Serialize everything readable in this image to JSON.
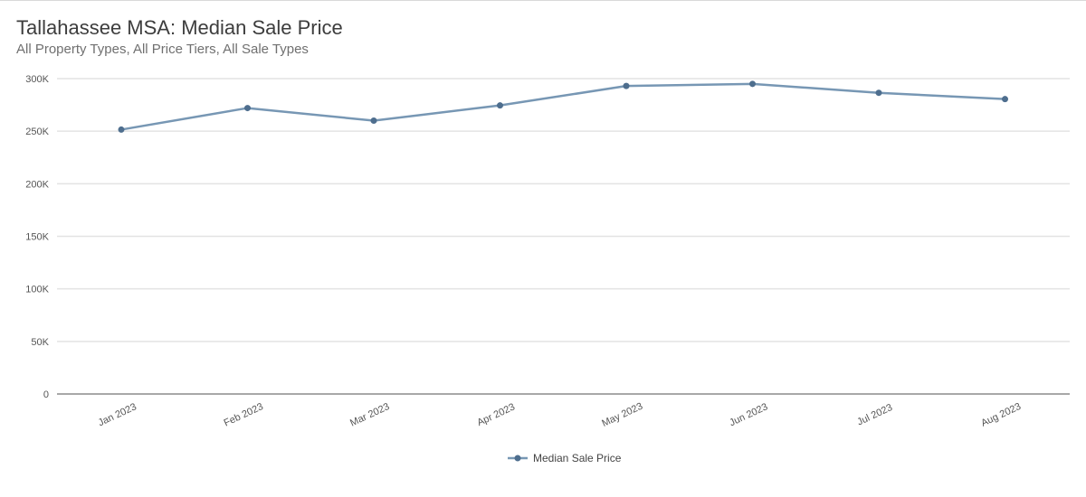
{
  "title": "Tallahassee MSA: Median Sale Price",
  "subtitle": "All Property Types, All Price Tiers, All Sale Types",
  "colors": {
    "series": "#7797b4",
    "marker": "#4e6e8e",
    "grid": "#e3e3e3",
    "axis": "#8c8c8c"
  },
  "chart_data": {
    "type": "line",
    "title": "Tallahassee MSA: Median Sale Price",
    "subtitle": "All Property Types, All Price Tiers, All Sale Types",
    "categories": [
      "Jan 2023",
      "Feb 2023",
      "Mar 2023",
      "Apr 2023",
      "May 2023",
      "Jun 2023",
      "Jul 2023",
      "Aug 2023"
    ],
    "series": [
      {
        "name": "Median Sale Price",
        "values": [
          251500,
          272000,
          260000,
          274500,
          293000,
          295000,
          286500,
          280500
        ]
      }
    ],
    "ylim": [
      0,
      300000
    ],
    "yticks": [
      0,
      50000,
      100000,
      150000,
      200000,
      250000,
      300000
    ],
    "ytick_labels": [
      "0",
      "50K",
      "100K",
      "150K",
      "200K",
      "250K",
      "300K"
    ],
    "xlabel": "",
    "ylabel": "",
    "grid": true,
    "legend": "bottom-center"
  }
}
